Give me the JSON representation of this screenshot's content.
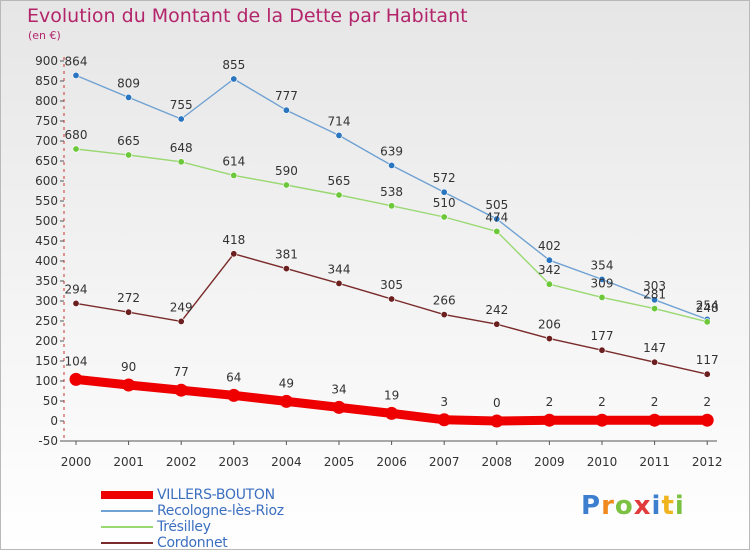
{
  "header": {
    "title": "Evolution du Montant de la Dette par Habitant",
    "subtitle": "(en €)"
  },
  "brand": {
    "letters": [
      "P",
      "r",
      "o",
      "x",
      "i",
      "t",
      "i"
    ],
    "colors": [
      "#3d7fce",
      "#f08a1f",
      "#7cc142",
      "#e23b3b",
      "#3d7fce",
      "#f0b41f",
      "#7cc142"
    ]
  },
  "chart_data": {
    "type": "line",
    "title": "Evolution du Montant de la Dette par Habitant",
    "subtitle": "(en €)",
    "x": [
      "2000",
      "2001",
      "2002",
      "2003",
      "2004",
      "2005",
      "2006",
      "2007",
      "2008",
      "2009",
      "2010",
      "2011",
      "2012"
    ],
    "ylim": [
      -50,
      900
    ],
    "yticks": [
      -50,
      0,
      50,
      100,
      150,
      200,
      250,
      300,
      350,
      400,
      450,
      500,
      550,
      600,
      650,
      700,
      750,
      800,
      850,
      900
    ],
    "grid": false,
    "legend_position": "bottom",
    "series": [
      {
        "name": "VILLERS-BOUTON",
        "color": "#ee0000",
        "marker_fill": "#ee0000",
        "values": [
          104,
          90,
          77,
          64,
          49,
          34,
          19,
          3,
          0,
          2,
          2,
          2,
          2
        ],
        "label_offsets": [
          -14,
          -14,
          -14,
          -14,
          -14,
          -14,
          -14,
          -14,
          -14,
          -14,
          -14,
          -14,
          -14
        ],
        "emphasis": true
      },
      {
        "name": "Recologne-lès-Rioz",
        "color": "#6fa1d2",
        "marker_fill": "#2a75bf",
        "values": [
          864,
          809,
          755,
          855,
          777,
          714,
          639,
          572,
          505,
          402,
          354,
          303,
          254
        ],
        "label_offsets": [
          -10,
          -10,
          -10,
          -10,
          -10,
          -10,
          -10,
          -10,
          -10,
          -10,
          -10,
          -10,
          -10
        ]
      },
      {
        "name": "Trésilley",
        "color": "#9ad872",
        "marker_fill": "#6cc83a",
        "values": [
          680,
          665,
          648,
          614,
          590,
          565,
          538,
          510,
          474,
          342,
          309,
          281,
          248
        ],
        "label_offsets": [
          -10,
          -10,
          -10,
          -10,
          -10,
          -10,
          -10,
          -10,
          -10,
          -10,
          -10,
          -10,
          -10
        ]
      },
      {
        "name": "Cordonnet",
        "color": "#7a2a2a",
        "marker_fill": "#6b1f1f",
        "values": [
          294,
          272,
          249,
          418,
          381,
          344,
          305,
          266,
          242,
          206,
          177,
          147,
          117
        ],
        "label_offsets": [
          -10,
          -10,
          -10,
          -10,
          -10,
          -10,
          -10,
          -10,
          -10,
          -10,
          -10,
          -10,
          -10
        ]
      }
    ]
  }
}
